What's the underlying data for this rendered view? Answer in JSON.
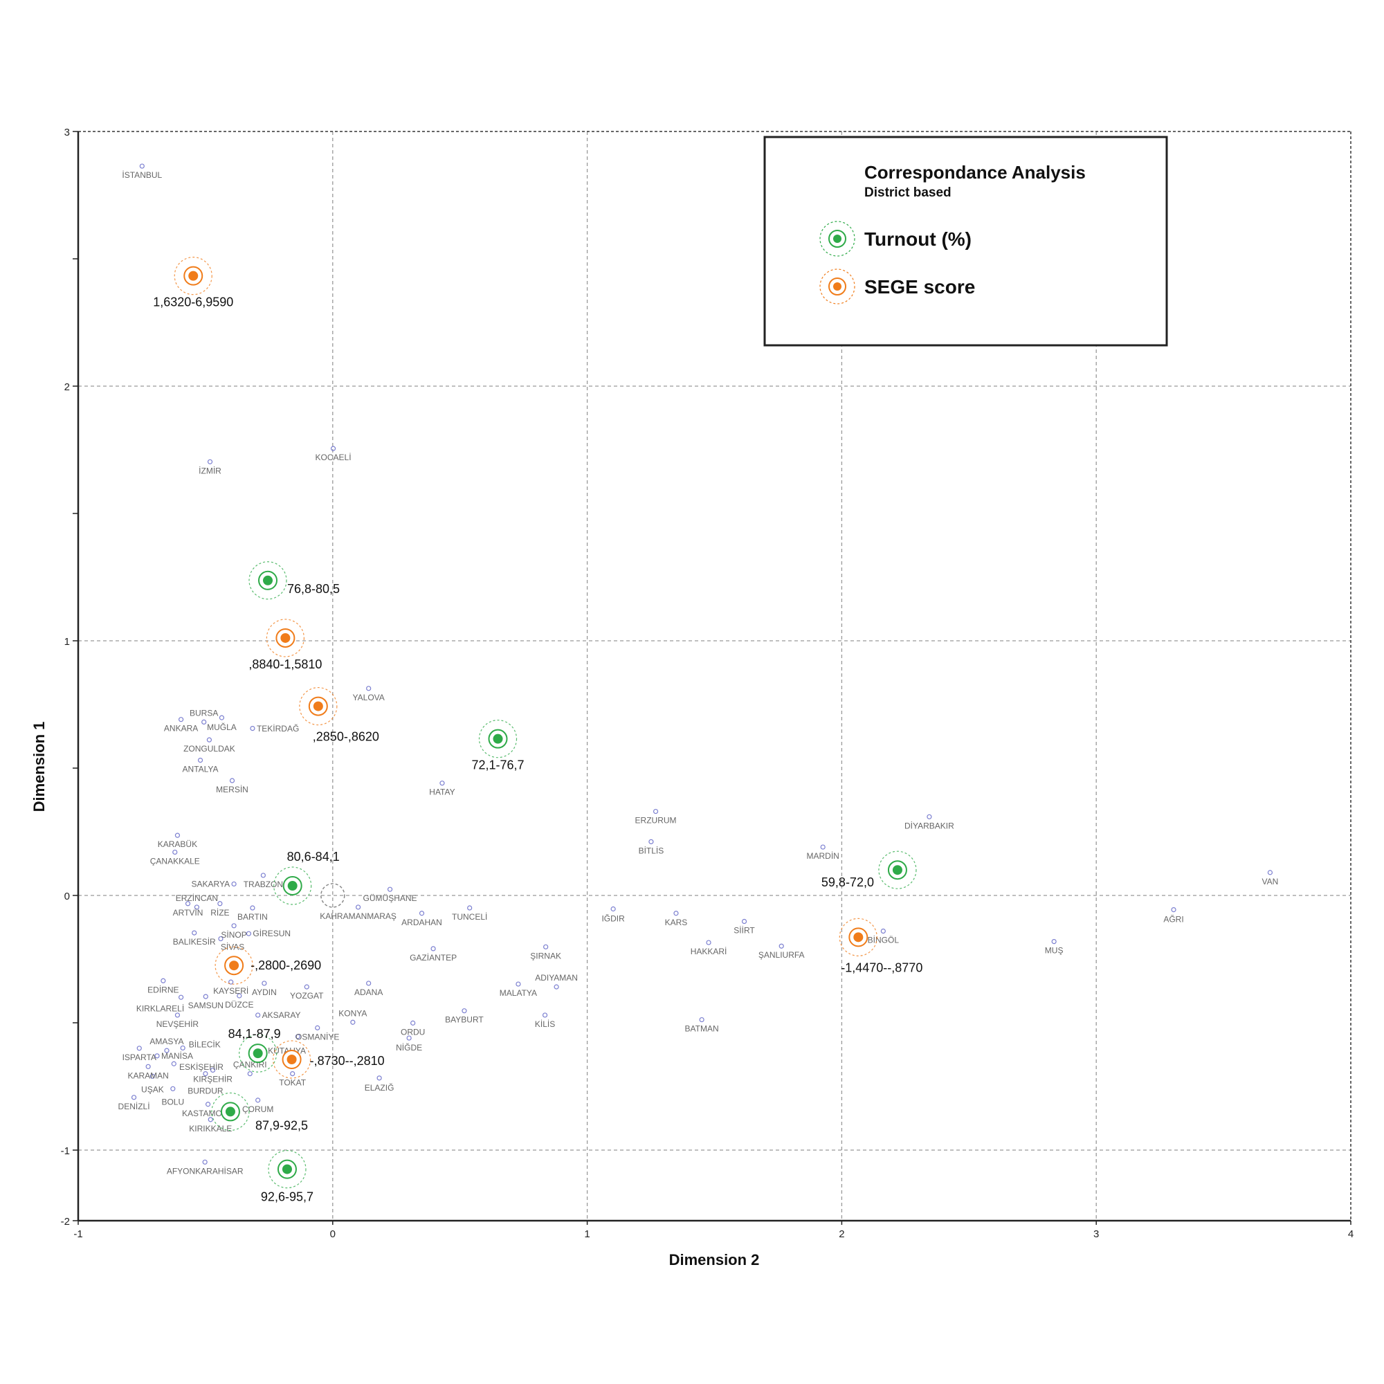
{
  "chart_data": {
    "type": "scatter",
    "title": "Correspondance Analysis",
    "subtitle": "District based",
    "xlabel": "Dimension 2",
    "ylabel": "Dimension 1",
    "xlim": [
      -1,
      4
    ],
    "ylim": [
      -1.275,
      3
    ],
    "grid": true,
    "legend_position": "top-right",
    "x_ticks": [
      "-1",
      "0",
      "1",
      "2",
      "3",
      "4"
    ],
    "y_ticks": [
      "3",
      "2",
      "1",
      "0",
      "-1",
      "-2"
    ],
    "colors": {
      "turnout": "#2eaa48",
      "sege": "#f07c1a",
      "province": "#7b7fd0"
    },
    "legend": [
      {
        "name": "Turnout (%)",
        "key": "turnout"
      },
      {
        "name": "SEGE score",
        "key": "sege"
      }
    ],
    "series": [
      {
        "name": "Turnout (%)",
        "key": "turnout",
        "points": [
          {
            "label": "76,8-80,5",
            "x": -0.255,
            "y": 1.237
          },
          {
            "label": "72,1-76,7",
            "x": 0.649,
            "y": 0.615
          },
          {
            "label": "80,6-84,1",
            "x": -0.158,
            "y": 0.038
          },
          {
            "label": "59,8-72,0",
            "x": 2.219,
            "y": 0.1
          },
          {
            "label": "84,1-87,9",
            "x": -0.294,
            "y": -0.62
          },
          {
            "label": "87,9-92,5",
            "x": -0.402,
            "y": -0.849
          },
          {
            "label": "92,6-95,7",
            "x": -0.179,
            "y": -1.075
          }
        ]
      },
      {
        "name": "SEGE score",
        "key": "sege",
        "points": [
          {
            "label": "1,6320-6,9590",
            "x": -0.548,
            "y": 2.433
          },
          {
            "label": ",8840-1,5810",
            "x": -0.186,
            "y": 1.011
          },
          {
            "label": ",2850-,8620",
            "x": -0.057,
            "y": 0.743
          },
          {
            "label": "-,2800-,2690",
            "x": -0.388,
            "y": -0.275
          },
          {
            "label": "-,8730--,2810",
            "x": -0.161,
            "y": -0.644
          },
          {
            "label": "-1,4470--,8770",
            "x": 2.065,
            "y": -0.164
          }
        ]
      },
      {
        "name": "Provinces",
        "key": "province",
        "points": [
          {
            "label": "İSTANBUL",
            "x": -0.749,
            "y": 2.864
          },
          {
            "label": "İZMİR",
            "x": -0.482,
            "y": 1.703
          },
          {
            "label": "KOCAELİ",
            "x": 0.002,
            "y": 1.755
          },
          {
            "label": "YALOVA",
            "x": 0.141,
            "y": 0.813
          },
          {
            "label": "ANKARA",
            "x": -0.596,
            "y": 0.691
          },
          {
            "label": "MUĞLA",
            "x": -0.436,
            "y": 0.698
          },
          {
            "label": "BURSA",
            "x": -0.506,
            "y": 0.681
          },
          {
            "label": "TEKİRDAĞ",
            "x": -0.315,
            "y": 0.656
          },
          {
            "label": "ANTALYA",
            "x": -0.52,
            "y": 0.531
          },
          {
            "label": "ZONGULDAK",
            "x": -0.485,
            "y": 0.611
          },
          {
            "label": "MERSİN",
            "x": -0.395,
            "y": 0.451
          },
          {
            "label": "HATAY",
            "x": 0.43,
            "y": 0.441
          },
          {
            "label": "ERZURUM",
            "x": 1.269,
            "y": 0.33
          },
          {
            "label": "DİYARBAKIR",
            "x": 2.344,
            "y": 0.309
          },
          {
            "label": "BİTLİS",
            "x": 1.251,
            "y": 0.211
          },
          {
            "label": "MARDİN",
            "x": 1.926,
            "y": 0.19
          },
          {
            "label": "VAN",
            "x": 3.683,
            "y": 0.09
          },
          {
            "label": "KARABÜK",
            "x": -0.61,
            "y": 0.236
          },
          {
            "label": "ÇANAKKALE",
            "x": -0.62,
            "y": 0.17
          },
          {
            "label": "TRABZON",
            "x": -0.273,
            "y": 0.079
          },
          {
            "label": "SAKARYA",
            "x": -0.388,
            "y": 0.045
          },
          {
            "label": "RİZE",
            "x": -0.443,
            "y": -0.032
          },
          {
            "label": "ARTVİN",
            "x": -0.569,
            "y": -0.032
          },
          {
            "label": "ERZİNCAN",
            "x": -0.534,
            "y": -0.046
          },
          {
            "label": "BARTIN",
            "x": -0.315,
            "y": -0.049
          },
          {
            "label": "GÜMÜŞHANE",
            "x": 0.225,
            "y": 0.024
          },
          {
            "label": "KAHRAMANMARAŞ",
            "x": 0.1,
            "y": -0.046
          },
          {
            "label": "SİNOP",
            "x": -0.388,
            "y": -0.119
          },
          {
            "label": "BALIKESİR",
            "x": -0.544,
            "y": -0.147
          },
          {
            "label": "ARDAHAN",
            "x": 0.35,
            "y": -0.07
          },
          {
            "label": "TUNCELİ",
            "x": 0.538,
            "y": -0.049
          },
          {
            "label": "IĞDIR",
            "x": 1.102,
            "y": -0.053
          },
          {
            "label": "KARS",
            "x": 1.349,
            "y": -0.07
          },
          {
            "label": "SİİRT",
            "x": 1.617,
            "y": -0.102
          },
          {
            "label": "BİNGÖL",
            "x": 2.163,
            "y": -0.14
          },
          {
            "label": "AĞRI",
            "x": 3.304,
            "y": -0.056
          },
          {
            "label": "MUŞ",
            "x": 2.834,
            "y": -0.181
          },
          {
            "label": "HAKKARİ",
            "x": 1.477,
            "y": -0.185
          },
          {
            "label": "ŞANLIURFA",
            "x": 1.763,
            "y": -0.199
          },
          {
            "label": "ŞIRNAK",
            "x": 0.837,
            "y": -0.202
          },
          {
            "label": "GAZİANTEP",
            "x": 0.395,
            "y": -0.209
          },
          {
            "label": "MALATYA",
            "x": 0.729,
            "y": -0.348
          },
          {
            "label": "ADIYAMAN",
            "x": 0.879,
            "y": -0.359
          },
          {
            "label": "GİRESUN",
            "x": -0.33,
            "y": -0.15
          },
          {
            "label": "SİVAS",
            "x": -0.44,
            "y": -0.17
          },
          {
            "label": "EDİRNE",
            "x": -0.666,
            "y": -0.335
          },
          {
            "label": "KAYSERİ",
            "x": -0.4,
            "y": -0.34
          },
          {
            "label": "SAMSUN",
            "x": -0.499,
            "y": -0.397
          },
          {
            "label": "KIRKLARELİ",
            "x": -0.596,
            "y": -0.4
          },
          {
            "label": "AYDIN",
            "x": -0.269,
            "y": -0.345
          },
          {
            "label": "YOZGAT",
            "x": -0.102,
            "y": -0.359
          },
          {
            "label": "ADANA",
            "x": 0.141,
            "y": -0.345
          },
          {
            "label": "DÜZCE",
            "x": -0.367,
            "y": -0.394
          },
          {
            "label": "NEVŞEHİR",
            "x": -0.61,
            "y": -0.47
          },
          {
            "label": "AKSARAY",
            "x": -0.294,
            "y": -0.47
          },
          {
            "label": "OSMANİYE",
            "x": -0.06,
            "y": -0.52
          },
          {
            "label": "KONYA",
            "x": 0.079,
            "y": -0.498
          },
          {
            "label": "ORDU",
            "x": 0.315,
            "y": -0.501
          },
          {
            "label": "NİĞDE",
            "x": 0.3,
            "y": -0.56
          },
          {
            "label": "BAYBURT",
            "x": 0.517,
            "y": -0.453
          },
          {
            "label": "KİLİS",
            "x": 0.834,
            "y": -0.47
          },
          {
            "label": "BATMAN",
            "x": 1.45,
            "y": -0.488
          },
          {
            "label": "KÜTAHYA",
            "x": -0.137,
            "y": -0.554
          },
          {
            "label": "ISPARTA",
            "x": -0.76,
            "y": -0.6
          },
          {
            "label": "AMASYA",
            "x": -0.652,
            "y": -0.609
          },
          {
            "label": "MANİSA",
            "x": -0.69,
            "y": -0.63
          },
          {
            "label": "BİLECİK",
            "x": -0.589,
            "y": -0.599
          },
          {
            "label": "KARAMAN",
            "x": -0.725,
            "y": -0.672
          },
          {
            "label": "ESKİŞEHİR",
            "x": -0.624,
            "y": -0.661
          },
          {
            "label": "UŞAK",
            "x": -0.708,
            "y": -0.71
          },
          {
            "label": "KIRŞEHİR",
            "x": -0.471,
            "y": -0.686
          },
          {
            "label": "BURDUR",
            "x": -0.5,
            "y": -0.7
          },
          {
            "label": "ÇANKIRI",
            "x": -0.325,
            "y": -0.7
          },
          {
            "label": "TOKAT",
            "x": -0.158,
            "y": -0.7
          },
          {
            "label": "ELAZIĞ",
            "x": 0.183,
            "y": -0.717
          },
          {
            "label": "DENİZLİ",
            "x": -0.781,
            "y": -0.793
          },
          {
            "label": "BOLU",
            "x": -0.628,
            "y": -0.759
          },
          {
            "label": "ÇORUM",
            "x": -0.294,
            "y": -0.804
          },
          {
            "label": "KASTAMONU",
            "x": -0.49,
            "y": -0.82
          },
          {
            "label": "KIRIKKALE",
            "x": -0.48,
            "y": -0.88
          },
          {
            "label": "AFYONKARAHİSAR",
            "x": -0.502,
            "y": -1.047
          }
        ]
      }
    ]
  }
}
